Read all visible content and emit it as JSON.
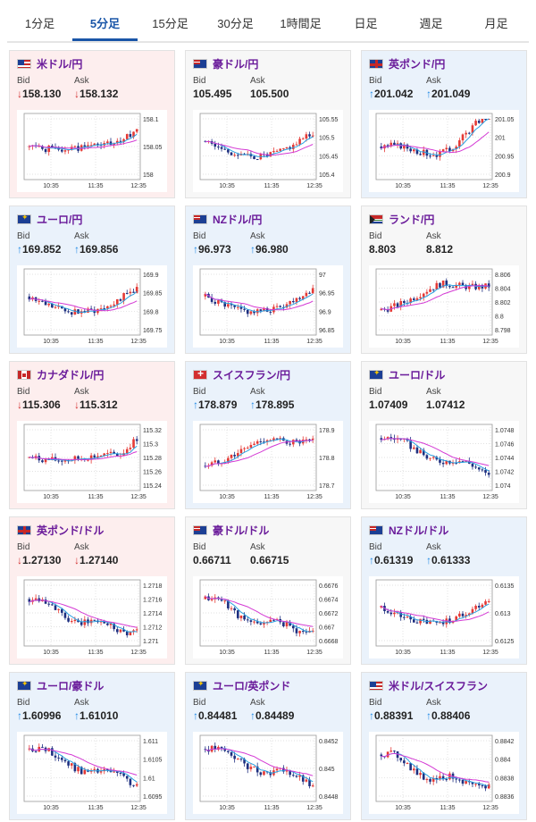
{
  "tabs": [
    "1分足",
    "5分足",
    "15分足",
    "30分足",
    "1時間足",
    "日足",
    "週足",
    "月足"
  ],
  "active_tab": 1,
  "labels": {
    "bid": "Bid",
    "ask": "Ask"
  },
  "colors": {
    "bull": "#e53935",
    "bear": "#1e2f80",
    "ma_fast": "#29a0e0",
    "ma_slow": "#d43ad4",
    "grid": "#d8d8d8"
  },
  "x_ticks": [
    "10:35",
    "11:35",
    "12:35"
  ],
  "pairs": [
    {
      "name": "米ドル/円",
      "flag": "us",
      "trend": "down",
      "bid": "158.130",
      "ask": "158.132",
      "y_ticks": [
        "158.1",
        "158.05",
        "158"
      ],
      "seed": 1,
      "shape": "up_end"
    },
    {
      "name": "豪ドル/円",
      "flag": "au",
      "trend": "flat",
      "bid": "105.495",
      "ask": "105.500",
      "y_ticks": [
        "105.55",
        "105.5",
        "105.45",
        "105.4"
      ],
      "seed": 2,
      "shape": "dip_recover"
    },
    {
      "name": "英ポンド/円",
      "flag": "gb",
      "trend": "up",
      "bid": "201.042",
      "ask": "201.049",
      "y_ticks": [
        "201.05",
        "201",
        "200.95",
        "200.9"
      ],
      "seed": 3,
      "shape": "dip_up"
    },
    {
      "name": "ユーロ/円",
      "flag": "eu",
      "trend": "up",
      "bid": "169.852",
      "ask": "169.856",
      "y_ticks": [
        "169.9",
        "169.85",
        "169.8",
        "169.75"
      ],
      "seed": 4,
      "shape": "dip_recover"
    },
    {
      "name": "NZドル/円",
      "flag": "nz",
      "trend": "up",
      "bid": "96.973",
      "ask": "96.980",
      "y_ticks": [
        "97",
        "96.95",
        "96.9",
        "96.85"
      ],
      "seed": 5,
      "shape": "dip_recover"
    },
    {
      "name": "ランド/円",
      "flag": "za",
      "trend": "flat",
      "bid": "8.803",
      "ask": "8.812",
      "y_ticks": [
        "8.806",
        "8.804",
        "8.802",
        "8.8",
        "8.798"
      ],
      "seed": 6,
      "shape": "flat_up"
    },
    {
      "name": "カナダドル/円",
      "flag": "ca",
      "trend": "down",
      "bid": "115.306",
      "ask": "115.312",
      "y_ticks": [
        "115.32",
        "115.3",
        "115.28",
        "115.26",
        "115.24"
      ],
      "seed": 7,
      "shape": "up_end"
    },
    {
      "name": "スイスフラン/円",
      "flag": "ch",
      "trend": "up",
      "bid": "178.879",
      "ask": "178.895",
      "y_ticks": [
        "178.9",
        "178.8",
        "178.7"
      ],
      "seed": 8,
      "shape": "flat_up"
    },
    {
      "name": "ユーロ/ドル",
      "flag": "eu",
      "trend": "flat",
      "bid": "1.07409",
      "ask": "1.07412",
      "y_ticks": [
        "1.0748",
        "1.0746",
        "1.0744",
        "1.0742",
        "1.074"
      ],
      "seed": 9,
      "shape": "down"
    },
    {
      "name": "英ポンド/ドル",
      "flag": "gb",
      "trend": "down",
      "bid": "1.27130",
      "ask": "1.27140",
      "y_ticks": [
        "1.2718",
        "1.2716",
        "1.2714",
        "1.2712",
        "1.271"
      ],
      "seed": 10,
      "shape": "down_flat"
    },
    {
      "name": "豪ドル/ドル",
      "flag": "au",
      "trend": "flat",
      "bid": "0.66711",
      "ask": "0.66715",
      "y_ticks": [
        "0.6676",
        "0.6674",
        "0.6672",
        "0.667",
        "0.6668"
      ],
      "seed": 11,
      "shape": "down_flat"
    },
    {
      "name": "NZドル/ドル",
      "flag": "nz",
      "trend": "up",
      "bid": "0.61319",
      "ask": "0.61333",
      "y_ticks": [
        "0.6135",
        "0.613",
        "0.6125"
      ],
      "seed": 12,
      "shape": "dip_recover"
    },
    {
      "name": "ユーロ/豪ドル",
      "flag": "eu",
      "trend": "up",
      "bid": "1.60996",
      "ask": "1.61010",
      "y_ticks": [
        "1.611",
        "1.6105",
        "1.61",
        "1.6095"
      ],
      "seed": 13,
      "shape": "down"
    },
    {
      "name": "ユーロ/英ポンド",
      "flag": "eu",
      "trend": "up",
      "bid": "0.84481",
      "ask": "0.84489",
      "y_ticks": [
        "0.8452",
        "0.845",
        "0.8448"
      ],
      "seed": 14,
      "shape": "down"
    },
    {
      "name": "米ドル/スイスフラン",
      "flag": "us",
      "trend": "up",
      "bid": "0.88391",
      "ask": "0.88406",
      "y_ticks": [
        "0.8842",
        "0.884",
        "0.8838",
        "0.8836"
      ],
      "seed": 15,
      "shape": "down_flat"
    }
  ]
}
